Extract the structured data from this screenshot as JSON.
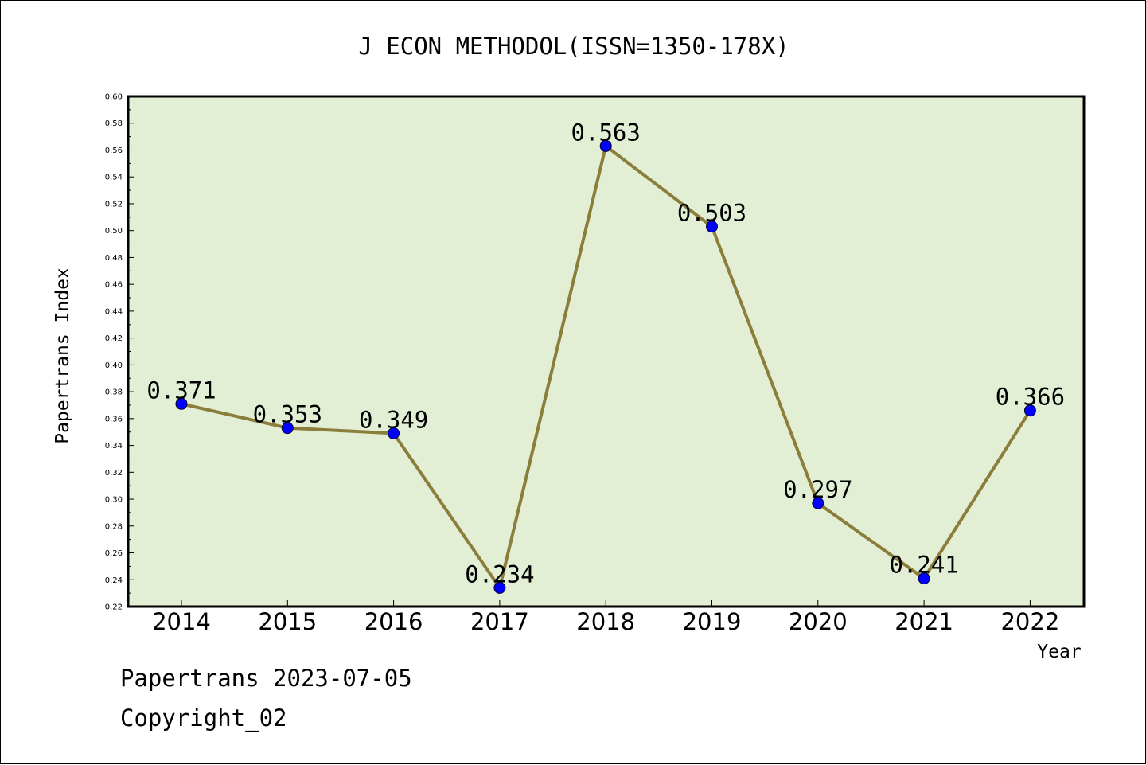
{
  "chart_data": {
    "type": "line",
    "title": "J ECON METHODOL(ISSN=1350-178X)",
    "xlabel": "Year",
    "ylabel": "Papertrans Index",
    "categories": [
      "2014",
      "2015",
      "2016",
      "2017",
      "2018",
      "2019",
      "2020",
      "2021",
      "2022"
    ],
    "series": [
      {
        "values": [
          0.371,
          0.353,
          0.349,
          0.234,
          0.563,
          0.503,
          0.297,
          0.241,
          0.366
        ],
        "labels": [
          "0.371",
          "0.353",
          "0.349",
          "0.234",
          "0.563",
          "0.503",
          "0.297",
          "0.241",
          "0.366"
        ]
      }
    ],
    "ylim": [
      0.22,
      0.6
    ],
    "yticks": [
      "0.22",
      "0.24",
      "0.26",
      "0.28",
      "0.30",
      "0.32",
      "0.34",
      "0.36",
      "0.38",
      "0.40",
      "0.42",
      "0.44",
      "0.46",
      "0.48",
      "0.50",
      "0.52",
      "0.54",
      "0.56",
      "0.58",
      "0.60"
    ],
    "grid": false,
    "colors": {
      "plot_background": "#e2efd5",
      "line": "#8b7d3a",
      "marker": "#0000ff"
    }
  },
  "footer": {
    "line1": "Papertrans 2023-07-05",
    "line2": "Copyright_02"
  }
}
